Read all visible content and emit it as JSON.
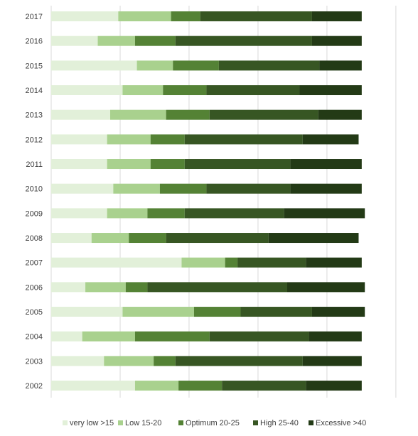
{
  "chart_data": {
    "type": "bar",
    "orientation": "horizontal",
    "stacked": true,
    "categories": [
      "2017",
      "2016",
      "2015",
      "2014",
      "2013",
      "2012",
      "2011",
      "2010",
      "2009",
      "2008",
      "2007",
      "2006",
      "2005",
      "2004",
      "2003",
      "2002"
    ],
    "series": [
      {
        "name": "very low >15",
        "color": "#e2f0d9",
        "values": [
          10.8,
          7.5,
          13.8,
          11.5,
          9.5,
          9.0,
          9.0,
          10.0,
          9.0,
          6.5,
          21.0,
          5.5,
          11.5,
          5.0,
          8.5,
          13.5
        ]
      },
      {
        "name": "Low 15-20",
        "color": "#a9d18e",
        "values": [
          8.5,
          6.0,
          5.8,
          6.5,
          9.0,
          7.0,
          7.0,
          7.5,
          6.5,
          6.0,
          7.0,
          6.5,
          11.5,
          8.5,
          8.0,
          7.0
        ]
      },
      {
        "name": "Optimum 20-25",
        "color": "#548235",
        "values": [
          4.7,
          6.5,
          7.4,
          7.0,
          7.0,
          5.5,
          5.5,
          7.5,
          6.0,
          6.0,
          2.0,
          3.5,
          7.5,
          12.0,
          3.5,
          7.0
        ]
      },
      {
        "name": "High 25-40",
        "color": "#375623",
        "values": [
          18.0,
          22.0,
          16.2,
          15.0,
          17.5,
          19.0,
          17.0,
          13.5,
          16.0,
          16.5,
          11.0,
          22.5,
          11.5,
          16.0,
          20.5,
          13.5
        ]
      },
      {
        "name": "Excessive >40",
        "color": "#233a16",
        "values": [
          8.0,
          8.0,
          6.8,
          10.0,
          7.0,
          9.0,
          11.5,
          11.5,
          13.0,
          14.5,
          9.0,
          12.5,
          8.5,
          8.5,
          9.5,
          9.0
        ]
      }
    ],
    "xlim": [
      0,
      57
    ],
    "grid": true,
    "legend_position": "bottom",
    "title": "",
    "xlabel": "",
    "ylabel": ""
  }
}
